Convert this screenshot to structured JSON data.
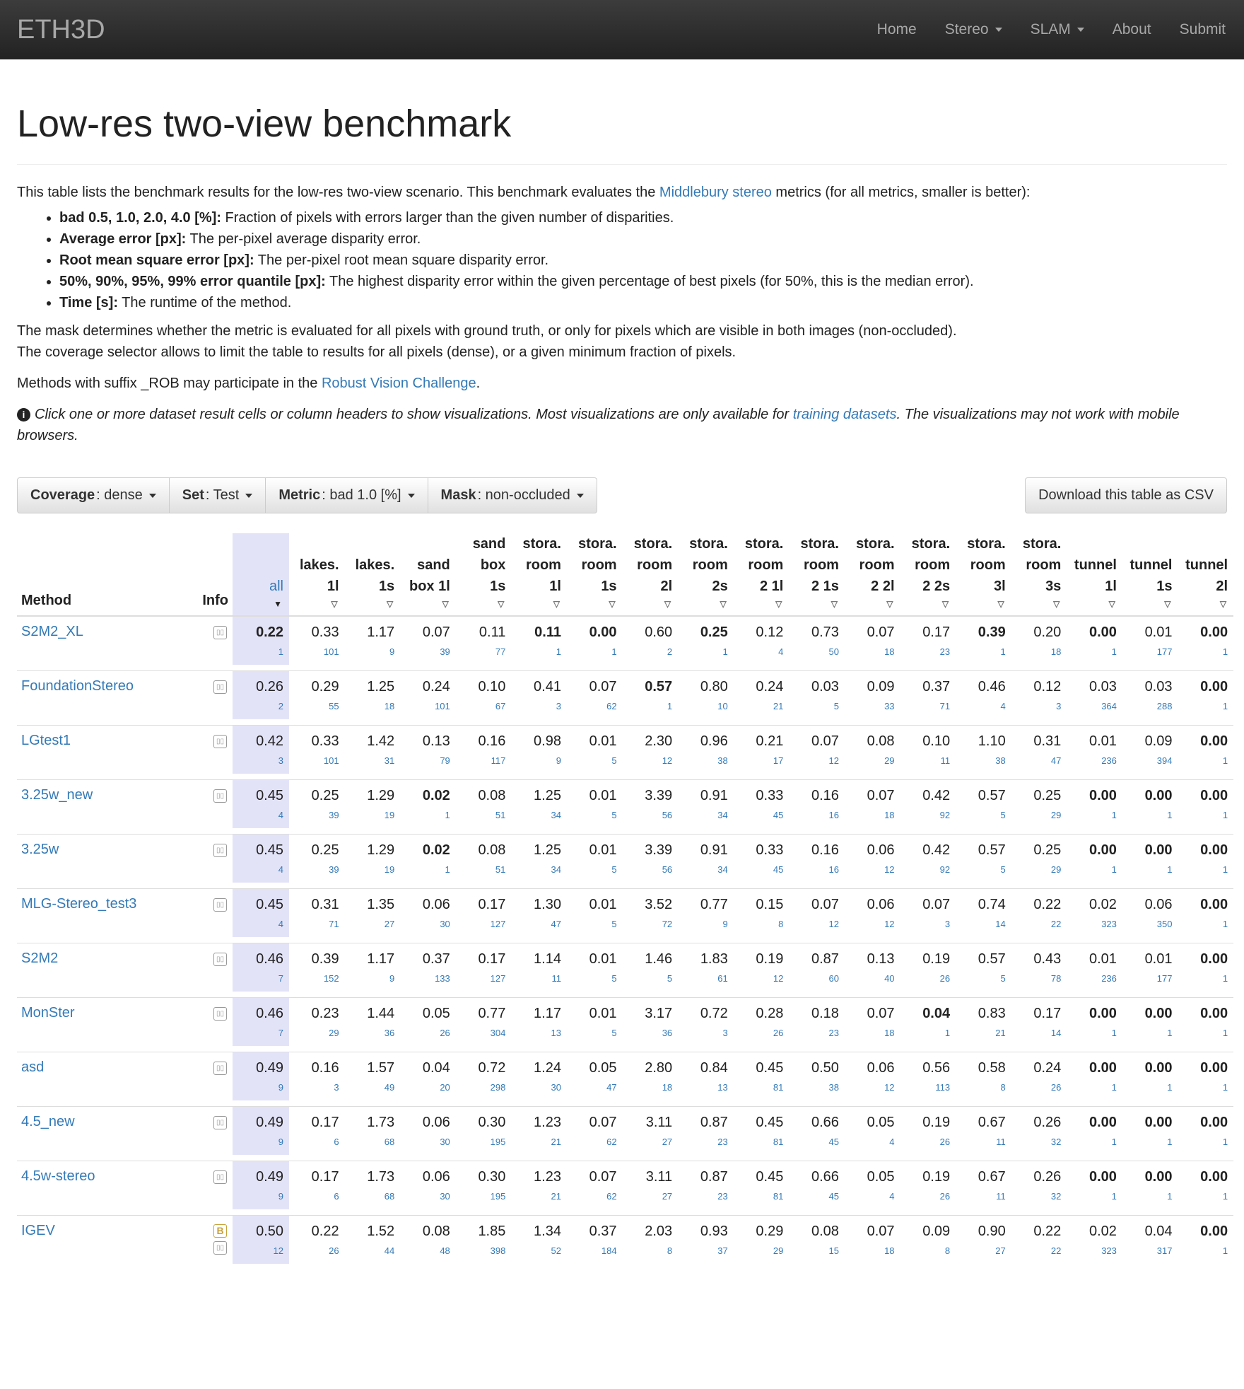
{
  "nav": {
    "brand": "ETH3D",
    "items": [
      {
        "label": "Home"
      },
      {
        "label": "Stereo"
      },
      {
        "label": "SLAM"
      },
      {
        "label": "About"
      },
      {
        "label": "Submit"
      }
    ]
  },
  "page": {
    "title": "Low-res two-view benchmark",
    "intro_pre": "This table lists the benchmark results for the low-res two-view scenario. This benchmark evaluates the ",
    "intro_link": "Middlebury stereo",
    "intro_post": " metrics (for all metrics, smaller is better):",
    "bullets": [
      {
        "term": "bad 0.5, 1.0, 2.0, 4.0 [%]:",
        "text": " Fraction of pixels with errors larger than the given number of disparities."
      },
      {
        "term": "Average error [px]:",
        "text": " The per-pixel average disparity error."
      },
      {
        "term": "Root mean square error [px]:",
        "text": " The per-pixel root mean square disparity error."
      },
      {
        "term": "50%, 90%, 95%, 99% error quantile [px]:",
        "text": " The highest disparity error within the given percentage of best pixels (for 50%, this is the median error)."
      },
      {
        "term": "Time [s]:",
        "text": " The runtime of the method."
      }
    ],
    "mask_line1": "The mask determines whether the metric is evaluated for all pixels with ground truth, or only for pixels which are visible in both images (non-occluded).",
    "mask_line2": "The coverage selector allows to limit the table to results for all pixels (dense), or a given minimum fraction of pixels.",
    "methods_pre": "Methods with suffix _ROB may participate in the ",
    "methods_link": "Robust Vision Challenge",
    "methods_post": ".",
    "info_icon": "i",
    "info_pre": "Click one or more dataset result cells or column headers to show visualizations. Most visualizations are only available for ",
    "info_link": "training datasets",
    "info_post": ". The visualizations may not work with mobile browsers."
  },
  "toolbar": {
    "coverage_label": "Coverage",
    "coverage_value": ": dense",
    "set_label": "Set",
    "set_value": ": Test",
    "metric_label": "Metric",
    "metric_value": ": bad 1.0 [%]",
    "mask_label": "Mask",
    "mask_value": ": non-occluded",
    "download": "Download this table as CSV"
  },
  "table": {
    "method_header": "Method",
    "info_header": "Info",
    "all_header": "all",
    "sort_active": "▼",
    "sort_inactive": "▽",
    "columns": [
      [
        "lakes.",
        "1l"
      ],
      [
        "lakes.",
        "1s"
      ],
      [
        "sand",
        "box 1l"
      ],
      [
        "sand",
        "box",
        "1s"
      ],
      [
        "stora.",
        "room",
        "1l"
      ],
      [
        "stora.",
        "room",
        "1s"
      ],
      [
        "stora.",
        "room",
        "2l"
      ],
      [
        "stora.",
        "room",
        "2s"
      ],
      [
        "stora.",
        "room",
        "2 1l"
      ],
      [
        "stora.",
        "room",
        "2 1s"
      ],
      [
        "stora.",
        "room",
        "2 2l"
      ],
      [
        "stora.",
        "room",
        "2 2s"
      ],
      [
        "stora.",
        "room",
        "3l"
      ],
      [
        "stora.",
        "room",
        "3s"
      ],
      [
        "tunnel",
        "1l"
      ],
      [
        "tunnel",
        "1s"
      ],
      [
        "tunnel",
        "2l"
      ]
    ],
    "rows": [
      {
        "method": "S2M2_XL",
        "icons": [
          "▯▯"
        ],
        "all": "0.22",
        "all_rank": "1",
        "all_bold": true,
        "values": [
          "0.33",
          "1.17",
          "0.07",
          "0.11",
          "0.11",
          "0.00",
          "0.60",
          "0.25",
          "0.12",
          "0.73",
          "0.07",
          "0.17",
          "0.39",
          "0.20",
          "0.00",
          "0.01",
          "0.00"
        ],
        "ranks": [
          "101",
          "9",
          "39",
          "77",
          "1",
          "1",
          "2",
          "1",
          "4",
          "50",
          "18",
          "23",
          "1",
          "18",
          "1",
          "177",
          "1"
        ],
        "bold": [
          4,
          5,
          7,
          12,
          14,
          16
        ]
      },
      {
        "method": "FoundationStereo",
        "icons": [
          "▯▯"
        ],
        "all": "0.26",
        "all_rank": "2",
        "all_bold": false,
        "values": [
          "0.29",
          "1.25",
          "0.24",
          "0.10",
          "0.41",
          "0.07",
          "0.57",
          "0.80",
          "0.24",
          "0.03",
          "0.09",
          "0.37",
          "0.46",
          "0.12",
          "0.03",
          "0.03",
          "0.00"
        ],
        "ranks": [
          "55",
          "18",
          "101",
          "67",
          "3",
          "62",
          "1",
          "10",
          "21",
          "5",
          "33",
          "71",
          "4",
          "3",
          "364",
          "288",
          "1"
        ],
        "bold": [
          6,
          16
        ]
      },
      {
        "method": "LGtest1",
        "icons": [
          "▯▯"
        ],
        "all": "0.42",
        "all_rank": "3",
        "all_bold": false,
        "values": [
          "0.33",
          "1.42",
          "0.13",
          "0.16",
          "0.98",
          "0.01",
          "2.30",
          "0.96",
          "0.21",
          "0.07",
          "0.08",
          "0.10",
          "1.10",
          "0.31",
          "0.01",
          "0.09",
          "0.00"
        ],
        "ranks": [
          "101",
          "31",
          "79",
          "117",
          "9",
          "5",
          "12",
          "38",
          "17",
          "12",
          "29",
          "11",
          "38",
          "47",
          "236",
          "394",
          "1"
        ],
        "bold": [
          16
        ]
      },
      {
        "method": "3.25w_new",
        "icons": [
          "▯▯"
        ],
        "all": "0.45",
        "all_rank": "4",
        "all_bold": false,
        "values": [
          "0.25",
          "1.29",
          "0.02",
          "0.08",
          "1.25",
          "0.01",
          "3.39",
          "0.91",
          "0.33",
          "0.16",
          "0.07",
          "0.42",
          "0.57",
          "0.25",
          "0.00",
          "0.00",
          "0.00"
        ],
        "ranks": [
          "39",
          "19",
          "1",
          "51",
          "34",
          "5",
          "56",
          "34",
          "45",
          "16",
          "18",
          "92",
          "5",
          "29",
          "1",
          "1",
          "1"
        ],
        "bold": [
          2,
          14,
          15,
          16
        ]
      },
      {
        "method": "3.25w",
        "icons": [
          "▯▯"
        ],
        "all": "0.45",
        "all_rank": "4",
        "all_bold": false,
        "values": [
          "0.25",
          "1.29",
          "0.02",
          "0.08",
          "1.25",
          "0.01",
          "3.39",
          "0.91",
          "0.33",
          "0.16",
          "0.06",
          "0.42",
          "0.57",
          "0.25",
          "0.00",
          "0.00",
          "0.00"
        ],
        "ranks": [
          "39",
          "19",
          "1",
          "51",
          "34",
          "5",
          "56",
          "34",
          "45",
          "16",
          "12",
          "92",
          "5",
          "29",
          "1",
          "1",
          "1"
        ],
        "bold": [
          2,
          14,
          15,
          16
        ]
      },
      {
        "method": "MLG-Stereo_test3",
        "icons": [
          "▯▯"
        ],
        "all": "0.45",
        "all_rank": "4",
        "all_bold": false,
        "values": [
          "0.31",
          "1.35",
          "0.06",
          "0.17",
          "1.30",
          "0.01",
          "3.52",
          "0.77",
          "0.15",
          "0.07",
          "0.06",
          "0.07",
          "0.74",
          "0.22",
          "0.02",
          "0.06",
          "0.00"
        ],
        "ranks": [
          "71",
          "27",
          "30",
          "127",
          "47",
          "5",
          "72",
          "9",
          "8",
          "12",
          "12",
          "3",
          "14",
          "22",
          "323",
          "350",
          "1"
        ],
        "bold": [
          16
        ]
      },
      {
        "method": "S2M2",
        "icons": [
          "▯▯"
        ],
        "all": "0.46",
        "all_rank": "7",
        "all_bold": false,
        "values": [
          "0.39",
          "1.17",
          "0.37",
          "0.17",
          "1.14",
          "0.01",
          "1.46",
          "1.83",
          "0.19",
          "0.87",
          "0.13",
          "0.19",
          "0.57",
          "0.43",
          "0.01",
          "0.01",
          "0.00"
        ],
        "ranks": [
          "152",
          "9",
          "133",
          "127",
          "11",
          "5",
          "5",
          "61",
          "12",
          "60",
          "40",
          "26",
          "5",
          "78",
          "236",
          "177",
          "1"
        ],
        "bold": [
          16
        ]
      },
      {
        "method": "MonSter",
        "icons": [
          "▯▯"
        ],
        "all": "0.46",
        "all_rank": "7",
        "all_bold": false,
        "values": [
          "0.23",
          "1.44",
          "0.05",
          "0.77",
          "1.17",
          "0.01",
          "3.17",
          "0.72",
          "0.28",
          "0.18",
          "0.07",
          "0.04",
          "0.83",
          "0.17",
          "0.00",
          "0.00",
          "0.00"
        ],
        "ranks": [
          "29",
          "36",
          "26",
          "304",
          "13",
          "5",
          "36",
          "3",
          "26",
          "23",
          "18",
          "1",
          "21",
          "14",
          "1",
          "1",
          "1"
        ],
        "bold": [
          11,
          14,
          15,
          16
        ]
      },
      {
        "method": "asd",
        "icons": [
          "▯▯"
        ],
        "all": "0.49",
        "all_rank": "9",
        "all_bold": false,
        "values": [
          "0.16",
          "1.57",
          "0.04",
          "0.72",
          "1.24",
          "0.05",
          "2.80",
          "0.84",
          "0.45",
          "0.50",
          "0.06",
          "0.56",
          "0.58",
          "0.24",
          "0.00",
          "0.00",
          "0.00"
        ],
        "ranks": [
          "3",
          "49",
          "20",
          "298",
          "30",
          "47",
          "18",
          "13",
          "81",
          "38",
          "12",
          "113",
          "8",
          "26",
          "1",
          "1",
          "1"
        ],
        "bold": [
          14,
          15,
          16
        ]
      },
      {
        "method": "4.5_new",
        "icons": [
          "▯▯"
        ],
        "all": "0.49",
        "all_rank": "9",
        "all_bold": false,
        "values": [
          "0.17",
          "1.73",
          "0.06",
          "0.30",
          "1.23",
          "0.07",
          "3.11",
          "0.87",
          "0.45",
          "0.66",
          "0.05",
          "0.19",
          "0.67",
          "0.26",
          "0.00",
          "0.00",
          "0.00"
        ],
        "ranks": [
          "6",
          "68",
          "30",
          "195",
          "21",
          "62",
          "27",
          "23",
          "81",
          "45",
          "4",
          "26",
          "11",
          "32",
          "1",
          "1",
          "1"
        ],
        "bold": [
          14,
          15,
          16
        ]
      },
      {
        "method": "4.5w-stereo",
        "icons": [
          "▯▯"
        ],
        "all": "0.49",
        "all_rank": "9",
        "all_bold": false,
        "values": [
          "0.17",
          "1.73",
          "0.06",
          "0.30",
          "1.23",
          "0.07",
          "3.11",
          "0.87",
          "0.45",
          "0.66",
          "0.05",
          "0.19",
          "0.67",
          "0.26",
          "0.00",
          "0.00",
          "0.00"
        ],
        "ranks": [
          "6",
          "68",
          "30",
          "195",
          "21",
          "62",
          "27",
          "23",
          "81",
          "45",
          "4",
          "26",
          "11",
          "32",
          "1",
          "1",
          "1"
        ],
        "bold": [
          14,
          15,
          16
        ]
      },
      {
        "method": "IGEV",
        "icons": [
          "B",
          "▯▯"
        ],
        "all": "0.50",
        "all_rank": "12",
        "all_bold": false,
        "values": [
          "0.22",
          "1.52",
          "0.08",
          "1.85",
          "1.34",
          "0.37",
          "2.03",
          "0.93",
          "0.29",
          "0.08",
          "0.07",
          "0.09",
          "0.90",
          "0.22",
          "0.02",
          "0.04",
          "0.00"
        ],
        "ranks": [
          "26",
          "44",
          "48",
          "398",
          "52",
          "184",
          "8",
          "37",
          "29",
          "15",
          "18",
          "8",
          "27",
          "22",
          "323",
          "317",
          "1"
        ],
        "bold": [
          16
        ]
      }
    ]
  }
}
